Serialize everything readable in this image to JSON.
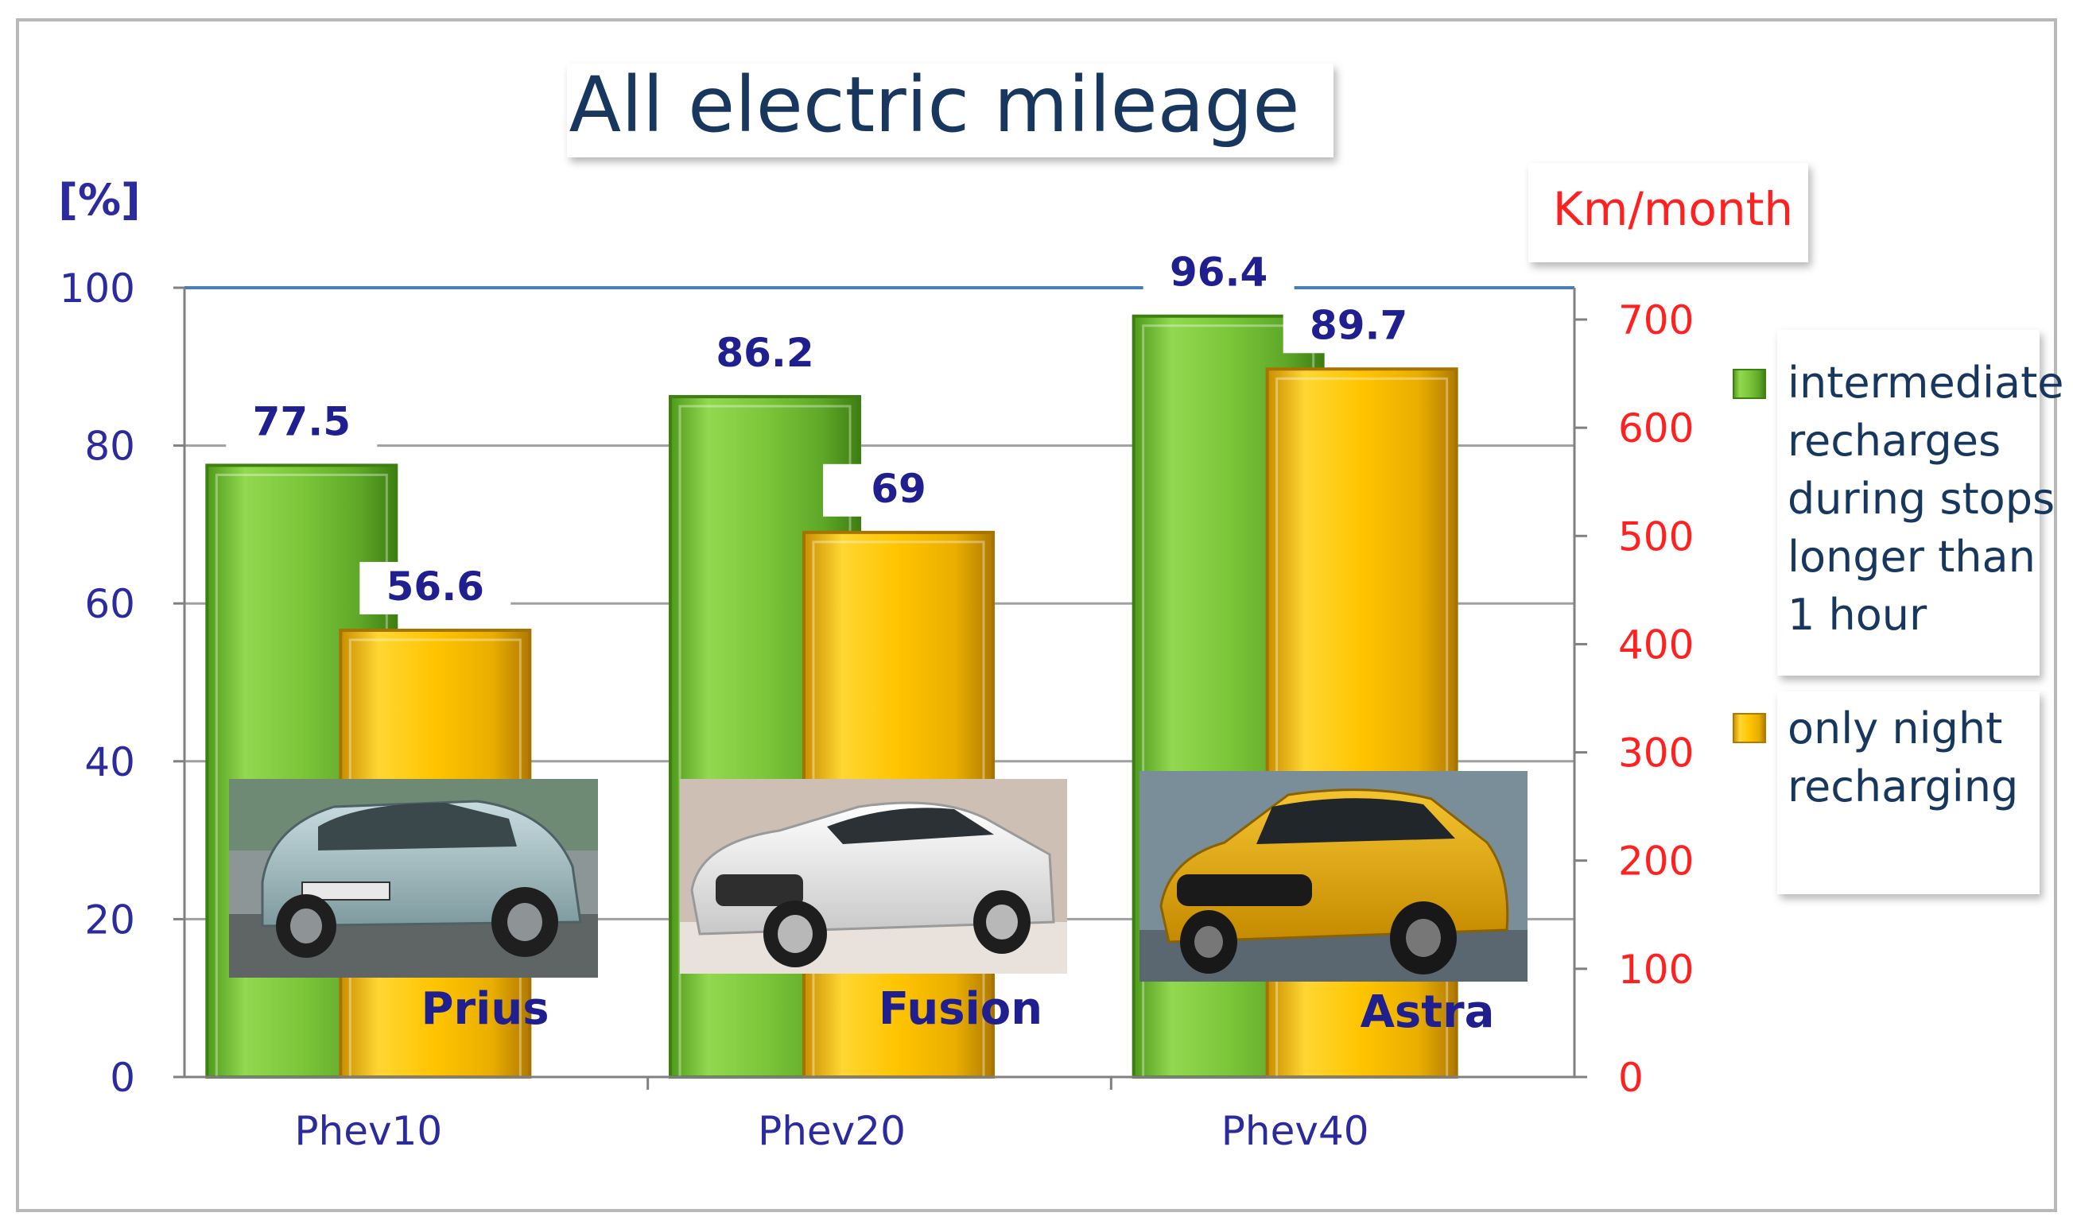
{
  "chart_data": {
    "type": "bar",
    "title": "All electric mileage",
    "ylabel": "[%]",
    "y2label": "Km/month",
    "categories": [
      "Phev10",
      "Phev20",
      "Phev40"
    ],
    "series": [
      {
        "name": "intermediate recharges during stops longer than 1 hour",
        "legend_lines": [
          "intermediate",
          "recharges",
          "during stops",
          "longer than",
          "1 hour"
        ],
        "values": [
          77.5,
          86.2,
          96.4
        ],
        "color": "#8CD23C"
      },
      {
        "name": "only night recharging",
        "legend_lines": [
          "only night",
          "recharging"
        ],
        "values": [
          56.6,
          69,
          89.7
        ],
        "color": "#FFC800"
      }
    ],
    "ylim": [
      0,
      100
    ],
    "yticks": [
      0,
      20,
      40,
      60,
      80,
      100
    ],
    "y2lim": [
      0,
      700
    ],
    "y2ticks": [
      0,
      100,
      200,
      300,
      400,
      500,
      600,
      700
    ],
    "grid": true,
    "legend_position": "right",
    "car_labels": [
      "Prius",
      "Fusion",
      "Astra"
    ],
    "colors": {
      "axis_text": "#2B2B9E",
      "title_text": "#17375E",
      "y2_text": "#FF2020",
      "value_label": "#1F1F8F",
      "legend_text": "#17375E",
      "grid": "#A0A0A0",
      "top_gridline": "#4A7EBB"
    }
  }
}
